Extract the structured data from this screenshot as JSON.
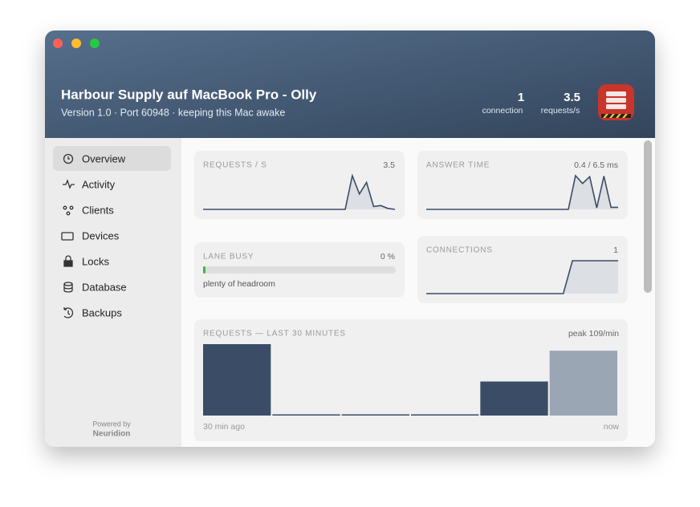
{
  "window": {
    "title": "Harbour Supply auf MacBook Pro - Olly",
    "subtitle": "Version 1.0 · Port 60948 · keeping this Mac awake"
  },
  "stats": [
    {
      "value": "1",
      "label": "connection"
    },
    {
      "value": "3.5",
      "label": "requests/s"
    }
  ],
  "sidebar": {
    "items": [
      "Overview",
      "Activity",
      "Clients",
      "Devices",
      "Locks",
      "Database",
      "Backups"
    ],
    "footer": [
      "Powered by",
      "Neuridion"
    ]
  },
  "cards": [
    {
      "label": "REQUESTS / S",
      "value": "3.5",
      "spark": [
        0,
        0,
        0,
        0,
        0,
        0,
        0,
        0,
        0,
        0,
        0,
        0,
        0,
        0,
        0,
        0,
        0,
        0,
        0,
        0,
        0,
        3.5,
        1.6,
        2.8,
        0.3,
        0.4,
        0.1,
        0
      ]
    },
    {
      "label": "ANSWER TIME",
      "value": "0.4 / 6.5 ms",
      "spark": [
        0,
        0,
        0,
        0,
        0,
        0,
        0,
        0,
        0,
        0,
        0,
        0,
        0,
        0,
        0,
        0,
        0,
        0,
        0,
        0,
        0,
        6.5,
        5.0,
        6.3,
        0.3,
        6.4,
        0.4,
        0.4
      ]
    },
    {
      "label": "LANE BUSY",
      "value": "0 %",
      "progress": 0,
      "note": "plenty of headroom"
    },
    {
      "label": "CONNECTIONS",
      "value": "1",
      "spark": [
        0,
        0,
        0,
        0,
        0,
        0,
        0,
        0,
        0,
        0,
        0,
        0,
        0,
        0,
        0,
        0,
        1,
        1,
        1,
        1,
        1,
        1
      ]
    }
  ],
  "history": {
    "label": "REQUESTS — LAST 30 MINUTES",
    "peak": "peak 109/min",
    "values": [
      109,
      1,
      1,
      1,
      52,
      99
    ],
    "start": "30 min ago",
    "end": "now"
  }
}
